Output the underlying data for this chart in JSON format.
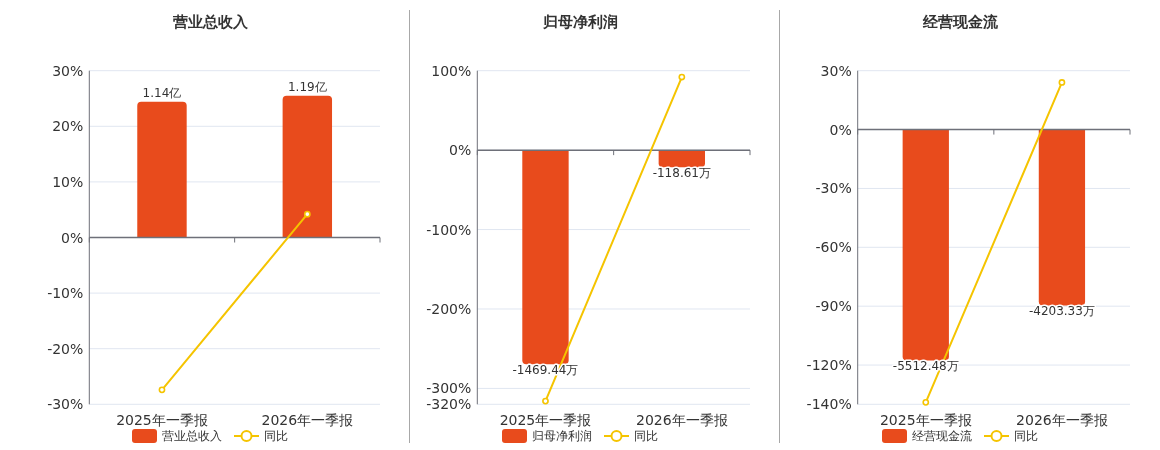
{
  "chart_data": [
    {
      "type": "bar",
      "title": "营业总收入",
      "categories": [
        "2025年一季报",
        "2026年一季报"
      ],
      "series": [
        {
          "name": "营业总收入",
          "axis": "y2",
          "color": "#e84b1c",
          "values": [
            1.14,
            1.19
          ],
          "value_labels": [
            "1.14亿",
            "1.19亿"
          ]
        },
        {
          "name": "同比",
          "type": "line",
          "color": "#f5c400",
          "marker": "circle",
          "values": [
            -27.4,
            4.2
          ]
        }
      ],
      "ylim": [
        -30,
        30
      ],
      "yticks": [
        {
          "value": 30,
          "label": "30%"
        },
        {
          "value": 20,
          "label": "20%"
        },
        {
          "value": 10,
          "label": "10%"
        },
        {
          "value": 0,
          "label": "0%"
        },
        {
          "value": -10,
          "label": "-10%"
        },
        {
          "value": -20,
          "label": "-20%"
        },
        {
          "value": -30,
          "label": "-30%"
        }
      ],
      "y2lim": [
        -1.4,
        1.4
      ],
      "tick_labels": "xy",
      "grid": "y",
      "legend": "bottom"
    },
    {
      "type": "bar",
      "title": "归母净利润",
      "categories": [
        "2025年一季报",
        "2026年一季报"
      ],
      "series": [
        {
          "name": "归母净利润",
          "axis": "y2",
          "color": "#e84b1c",
          "values": [
            -1469.44,
            -118.61
          ],
          "value_labels": [
            "-1469.44万",
            "-118.61万"
          ]
        },
        {
          "name": "同比",
          "type": "line",
          "color": "#f5c400",
          "marker": "circle",
          "values": [
            -316,
            92
          ]
        }
      ],
      "ylim": [
        -320,
        100
      ],
      "yticks": [
        {
          "value": 100,
          "label": "100%"
        },
        {
          "value": 0,
          "label": "0%"
        },
        {
          "value": -100,
          "label": "-100%"
        },
        {
          "value": -200,
          "label": "-200%"
        },
        {
          "value": -300,
          "label": "-300%"
        },
        {
          "value": -320,
          "label": "-320%"
        }
      ],
      "y2lim": [
        -1745,
        545
      ],
      "tick_labels": "xy",
      "grid": "y",
      "legend": "bottom"
    },
    {
      "type": "bar",
      "title": "经营现金流",
      "categories": [
        "2025年一季报",
        "2026年一季报"
      ],
      "series": [
        {
          "name": "经营现金流",
          "axis": "y2",
          "color": "#e84b1c",
          "values": [
            -5512.48,
            -4203.33
          ],
          "value_labels": [
            "-5512.48万",
            "-4203.33万"
          ]
        },
        {
          "name": "同比",
          "type": "line",
          "color": "#f5c400",
          "marker": "circle",
          "values": [
            -139,
            24
          ]
        }
      ],
      "ylim": [
        -140,
        30
      ],
      "yticks": [
        {
          "value": 30,
          "label": "30%"
        },
        {
          "value": 0,
          "label": "0%"
        },
        {
          "value": -30,
          "label": "-30%"
        },
        {
          "value": -60,
          "label": "-60%"
        },
        {
          "value": -90,
          "label": "-90%"
        },
        {
          "value": -120,
          "label": "-120%"
        },
        {
          "value": -140,
          "label": "-140%"
        }
      ],
      "y2lim": [
        -6560,
        1400
      ],
      "tick_labels": "xy",
      "grid": "y",
      "legend": "bottom"
    }
  ]
}
